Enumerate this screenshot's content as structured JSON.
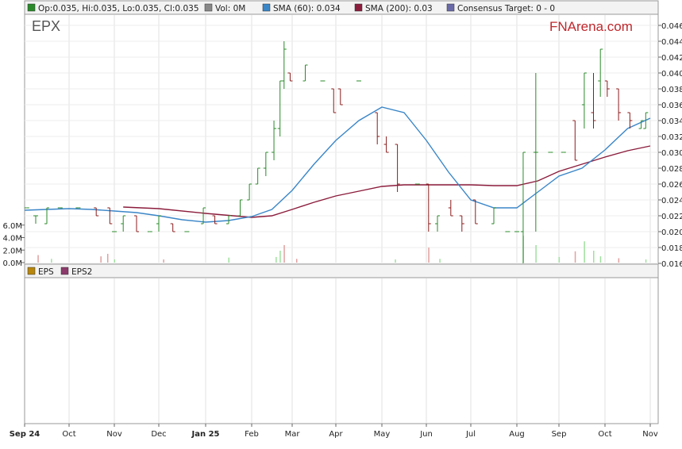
{
  "legend": {
    "ohlc": "Op:0.035, Hi:0.035, Lo:0.035, Cl:0.035",
    "vol": "Vol: 0M",
    "sma60": "SMA (60): 0.034",
    "sma200": "SMA (200): 0.03",
    "consensus": "Consensus Target: 0 - 0"
  },
  "ticker": "EPX",
  "brand": "FNArena.com",
  "eps_legend": {
    "eps": "EPS",
    "eps2": "EPS2"
  },
  "colors": {
    "up": "#2a8a2a",
    "down": "#8b1c1c",
    "sma60": "#3a86c8",
    "sma200": "#8b1c3c",
    "volume_up": "#9ee09e",
    "volume_down": "#e0a0a0",
    "eps": "#b8860b",
    "eps2": "#8b3a6b",
    "consensus": "#6a6aa8",
    "vol_swatch": "#888888",
    "ohlc_swatch": "#2a8a2a"
  },
  "chart_data": [
    {
      "type": "candlestick",
      "title": "EPX",
      "ylim": [
        0.016,
        0.047
      ],
      "y_ticks": [
        "0.016",
        "0.018",
        "0.020",
        "0.022",
        "0.024",
        "0.026",
        "0.028",
        "0.030",
        "0.032",
        "0.034",
        "0.036",
        "0.038",
        "0.040",
        "0.042",
        "0.044",
        "0.046"
      ],
      "volume_ticks": [
        "0.0M",
        "2.0M",
        "4.0M",
        "6.0M"
      ],
      "volume_ylim": [
        0,
        8
      ],
      "x_labels": [
        "Sep 24",
        "Oct",
        "Nov",
        "Dec",
        "Jan 25",
        "Feb",
        "Mar",
        "Apr",
        "May",
        "Jun",
        "Jul",
        "Aug",
        "Sep",
        "Oct",
        "Nov"
      ],
      "x_bold": [
        "Sep 24",
        "Jan 25"
      ],
      "x_start": 0.0,
      "x_end": 14.0,
      "x_month_index": [
        0,
        1,
        2,
        3,
        4,
        5,
        6,
        7,
        8,
        9,
        10,
        11,
        12,
        13,
        14
      ],
      "price_bars": [
        {
          "t": 0.05,
          "o": 0.023,
          "h": 0.023,
          "l": 0.023,
          "c": 0.023
        },
        {
          "t": 0.25,
          "o": 0.022,
          "h": 0.022,
          "l": 0.021,
          "c": 0.022
        },
        {
          "t": 0.5,
          "o": 0.021,
          "h": 0.023,
          "l": 0.021,
          "c": 0.023
        },
        {
          "t": 0.8,
          "o": 0.023,
          "h": 0.023,
          "l": 0.023,
          "c": 0.023
        },
        {
          "t": 1.2,
          "o": 0.023,
          "h": 0.023,
          "l": 0.023,
          "c": 0.023
        },
        {
          "t": 1.6,
          "o": 0.023,
          "h": 0.023,
          "l": 0.022,
          "c": 0.022
        },
        {
          "t": 1.9,
          "o": 0.023,
          "h": 0.023,
          "l": 0.021,
          "c": 0.021
        },
        {
          "t": 2.0,
          "o": 0.02,
          "h": 0.02,
          "l": 0.02,
          "c": 0.02
        },
        {
          "t": 2.2,
          "o": 0.021,
          "h": 0.022,
          "l": 0.02,
          "c": 0.022
        },
        {
          "t": 2.5,
          "o": 0.022,
          "h": 0.022,
          "l": 0.02,
          "c": 0.02
        },
        {
          "t": 2.8,
          "o": 0.02,
          "h": 0.02,
          "l": 0.02,
          "c": 0.02
        },
        {
          "t": 3.0,
          "o": 0.021,
          "h": 0.022,
          "l": 0.02,
          "c": 0.022
        },
        {
          "t": 3.3,
          "o": 0.021,
          "h": 0.021,
          "l": 0.02,
          "c": 0.02
        },
        {
          "t": 3.6,
          "o": 0.02,
          "h": 0.02,
          "l": 0.02,
          "c": 0.02
        },
        {
          "t": 3.95,
          "o": 0.021,
          "h": 0.023,
          "l": 0.021,
          "c": 0.023
        },
        {
          "t": 4.2,
          "o": 0.022,
          "h": 0.022,
          "l": 0.021,
          "c": 0.021
        },
        {
          "t": 4.5,
          "o": 0.021,
          "h": 0.022,
          "l": 0.021,
          "c": 0.022
        },
        {
          "t": 4.75,
          "o": 0.022,
          "h": 0.024,
          "l": 0.022,
          "c": 0.024
        },
        {
          "t": 4.95,
          "o": 0.024,
          "h": 0.026,
          "l": 0.024,
          "c": 0.026
        },
        {
          "t": 5.15,
          "o": 0.026,
          "h": 0.028,
          "l": 0.026,
          "c": 0.028
        },
        {
          "t": 5.35,
          "o": 0.028,
          "h": 0.03,
          "l": 0.027,
          "c": 0.03
        },
        {
          "t": 5.55,
          "o": 0.03,
          "h": 0.034,
          "l": 0.029,
          "c": 0.033
        },
        {
          "t": 5.7,
          "o": 0.033,
          "h": 0.039,
          "l": 0.032,
          "c": 0.039
        },
        {
          "t": 5.8,
          "o": 0.039,
          "h": 0.044,
          "l": 0.038,
          "c": 0.043
        },
        {
          "t": 5.95,
          "o": 0.04,
          "h": 0.04,
          "l": 0.039,
          "c": 0.039
        },
        {
          "t": 6.3,
          "o": 0.039,
          "h": 0.041,
          "l": 0.039,
          "c": 0.041
        },
        {
          "t": 6.7,
          "o": 0.039,
          "h": 0.039,
          "l": 0.039,
          "c": 0.039
        },
        {
          "t": 6.95,
          "o": 0.038,
          "h": 0.038,
          "l": 0.035,
          "c": 0.035
        },
        {
          "t": 7.1,
          "o": 0.038,
          "h": 0.038,
          "l": 0.036,
          "c": 0.036
        },
        {
          "t": 7.5,
          "o": 0.039,
          "h": 0.039,
          "l": 0.039,
          "c": 0.039
        },
        {
          "t": 7.9,
          "o": 0.035,
          "h": 0.035,
          "l": 0.031,
          "c": 0.032
        },
        {
          "t": 8.1,
          "o": 0.031,
          "h": 0.032,
          "l": 0.03,
          "c": 0.03
        },
        {
          "t": 8.35,
          "o": 0.031,
          "h": 0.031,
          "l": 0.025,
          "c": 0.026
        },
        {
          "t": 8.8,
          "o": 0.026,
          "h": 0.026,
          "l": 0.026,
          "c": 0.026
        },
        {
          "t": 9.05,
          "o": 0.026,
          "h": 0.026,
          "l": 0.02,
          "c": 0.021
        },
        {
          "t": 9.25,
          "o": 0.021,
          "h": 0.022,
          "l": 0.02,
          "c": 0.022
        },
        {
          "t": 9.55,
          "o": 0.023,
          "h": 0.024,
          "l": 0.022,
          "c": 0.022
        },
        {
          "t": 9.8,
          "o": 0.022,
          "h": 0.022,
          "l": 0.02,
          "c": 0.021
        },
        {
          "t": 10.1,
          "o": 0.024,
          "h": 0.024,
          "l": 0.021,
          "c": 0.021
        },
        {
          "t": 10.5,
          "o": 0.021,
          "h": 0.023,
          "l": 0.021,
          "c": 0.023
        },
        {
          "t": 10.8,
          "o": 0.02,
          "h": 0.02,
          "l": 0.02,
          "c": 0.02
        },
        {
          "t": 11.0,
          "o": 0.02,
          "h": 0.02,
          "l": 0.02,
          "c": 0.02
        },
        {
          "t": 11.15,
          "o": 0.02,
          "h": 0.03,
          "l": 0.016,
          "c": 0.03
        },
        {
          "t": 11.45,
          "o": 0.03,
          "h": 0.04,
          "l": 0.02,
          "c": 0.03
        },
        {
          "t": 11.8,
          "o": 0.03,
          "h": 0.03,
          "l": 0.03,
          "c": 0.03
        },
        {
          "t": 12.1,
          "o": 0.03,
          "h": 0.03,
          "l": 0.03,
          "c": 0.03
        },
        {
          "t": 12.35,
          "o": 0.034,
          "h": 0.034,
          "l": 0.029,
          "c": 0.029
        },
        {
          "t": 12.55,
          "o": 0.036,
          "h": 0.04,
          "l": 0.033,
          "c": 0.04
        },
        {
          "t": 12.75,
          "o": 0.035,
          "h": 0.04,
          "l": 0.033,
          "c": 0.034
        },
        {
          "t": 12.9,
          "o": 0.039,
          "h": 0.043,
          "l": 0.037,
          "c": 0.043
        },
        {
          "t": 13.05,
          "o": 0.039,
          "h": 0.039,
          "l": 0.037,
          "c": 0.038
        },
        {
          "t": 13.3,
          "o": 0.038,
          "h": 0.038,
          "l": 0.034,
          "c": 0.035
        },
        {
          "t": 13.55,
          "o": 0.035,
          "h": 0.035,
          "l": 0.033,
          "c": 0.034
        },
        {
          "t": 13.8,
          "o": 0.033,
          "h": 0.034,
          "l": 0.033,
          "c": 0.034
        },
        {
          "t": 13.9,
          "o": 0.033,
          "h": 0.035,
          "l": 0.033,
          "c": 0.035
        }
      ],
      "sma60": {
        "t": [
          0.0,
          0.5,
          1.0,
          1.5,
          2.0,
          2.5,
          3.0,
          3.5,
          4.0,
          4.5,
          5.0,
          5.5,
          6.0,
          6.5,
          7.0,
          7.5,
          8.0,
          8.5,
          9.0,
          9.5,
          10.0,
          10.5,
          11.0,
          11.5,
          12.0,
          12.5,
          13.0,
          13.5,
          14.0
        ],
        "v": [
          0.0227,
          0.0228,
          0.0229,
          0.0228,
          0.0226,
          0.0224,
          0.022,
          0.0215,
          0.0212,
          0.0214,
          0.0219,
          0.0228,
          0.0252,
          0.0285,
          0.0315,
          0.034,
          0.0357,
          0.035,
          0.0315,
          0.0275,
          0.024,
          0.023,
          0.023,
          0.025,
          0.027,
          0.028,
          0.0303,
          0.033,
          0.0343
        ]
      },
      "sma200": {
        "t": [
          2.2,
          3.0,
          4.0,
          5.0,
          5.5,
          6.0,
          6.5,
          7.0,
          7.5,
          8.0,
          8.5,
          9.0,
          9.5,
          10.0,
          10.5,
          11.0,
          11.5,
          12.0,
          12.5,
          13.0,
          13.5,
          14.0
        ],
        "v": [
          0.0231,
          0.0229,
          0.0223,
          0.0218,
          0.022,
          0.0228,
          0.0237,
          0.0245,
          0.0251,
          0.0257,
          0.0259,
          0.0259,
          0.0259,
          0.0259,
          0.0258,
          0.0258,
          0.0264,
          0.0276,
          0.0285,
          0.0294,
          0.0302,
          0.0308
        ]
      },
      "volume": [
        {
          "t": 0.3,
          "v": 1.2,
          "up": false
        },
        {
          "t": 0.6,
          "v": 0.6,
          "up": true
        },
        {
          "t": 1.7,
          "v": 1.0,
          "up": false
        },
        {
          "t": 1.85,
          "v": 1.4,
          "up": false
        },
        {
          "t": 2.0,
          "v": 0.5,
          "up": true
        },
        {
          "t": 3.1,
          "v": 0.5,
          "up": false
        },
        {
          "t": 4.5,
          "v": 0.8,
          "up": true
        },
        {
          "t": 5.6,
          "v": 0.9,
          "up": true
        },
        {
          "t": 5.7,
          "v": 1.9,
          "up": true
        },
        {
          "t": 5.8,
          "v": 2.8,
          "up": false
        },
        {
          "t": 6.1,
          "v": 0.6,
          "up": false
        },
        {
          "t": 8.3,
          "v": 0.5,
          "up": true
        },
        {
          "t": 9.05,
          "v": 2.4,
          "up": false
        },
        {
          "t": 9.3,
          "v": 0.6,
          "up": true
        },
        {
          "t": 11.15,
          "v": 4.3,
          "up": true
        },
        {
          "t": 11.45,
          "v": 2.8,
          "up": true
        },
        {
          "t": 12.0,
          "v": 0.9,
          "up": true
        },
        {
          "t": 12.35,
          "v": 1.8,
          "up": false
        },
        {
          "t": 12.55,
          "v": 3.4,
          "up": true
        },
        {
          "t": 12.75,
          "v": 1.9,
          "up": true
        },
        {
          "t": 12.9,
          "v": 1.0,
          "up": true
        },
        {
          "t": 13.3,
          "v": 0.7,
          "up": false
        },
        {
          "t": 13.9,
          "v": 0.5,
          "up": true
        }
      ]
    },
    {
      "type": "line",
      "title": "",
      "series": [
        {
          "name": "EPS",
          "values": []
        },
        {
          "name": "EPS2",
          "values": []
        }
      ]
    }
  ]
}
